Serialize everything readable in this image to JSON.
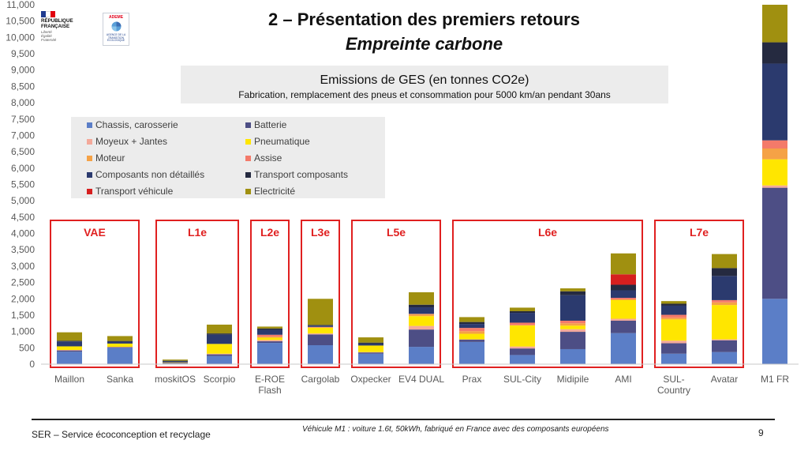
{
  "slide": {
    "title": "2 – Présentation des premiers retours",
    "subtitle": "Empreinte carbone"
  },
  "logos": {
    "republique": [
      "RÉPUBLIQUE",
      "FRANÇAISE"
    ],
    "republique_motto": [
      "Liberté",
      "Égalité",
      "Fraternité"
    ],
    "ademe_name": "ADEME",
    "ademe_tagline": [
      "AGENCE DE LA",
      "TRANSITION",
      "ÉCOLOGIQUE"
    ]
  },
  "chart_data": {
    "type": "bar",
    "stacked": true,
    "title": "Emissions de GES (en tonnes CO2e)",
    "subtitle": "Fabrication, remplacement des pneus et consommation pour 5000 km/an pendant 30ans",
    "ylim": [
      0,
      11000
    ],
    "yticks": [
      "0",
      "500",
      "1,000",
      "1,500",
      "2,000",
      "2,500",
      "3,000",
      "3,500",
      "4,000",
      "4,500",
      "5,000",
      "5,500",
      "6,000",
      "6,500",
      "7,000",
      "7,500",
      "8,000",
      "8,500",
      "9,000",
      "9,500",
      "10,000",
      "10,500",
      "11,000"
    ],
    "grid": false,
    "legend_position": "top-left",
    "categories": [
      "Maillon",
      "Sanka",
      "moskitOS",
      "Scorpio",
      "E-ROE Flash",
      "Cargolab",
      "Oxpecker",
      "EV4 DUAL",
      "Prax",
      "SUL-City",
      "Midipile",
      "AMI",
      "SUL-Country",
      "Avatar",
      "M1 FR"
    ],
    "category_labels": [
      [
        "Maillon"
      ],
      [
        "Sanka"
      ],
      [
        "moskitOS"
      ],
      [
        "Scorpio"
      ],
      [
        "E-ROE",
        "Flash"
      ],
      [
        "Cargolab"
      ],
      [
        "Oxpecker"
      ],
      [
        "EV4 DUAL"
      ],
      [
        "Prax"
      ],
      [
        "SUL-City"
      ],
      [
        "Midipile"
      ],
      [
        "AMI"
      ],
      [
        "SUL-",
        "Country"
      ],
      [
        "Avatar"
      ],
      [
        "M1 FR"
      ]
    ],
    "series": [
      {
        "name": "Chassis, carosserie",
        "color": "#5b7ec7",
        "values": [
          380,
          500,
          20,
          250,
          650,
          580,
          320,
          530,
          680,
          280,
          460,
          950,
          320,
          370,
          2000
        ]
      },
      {
        "name": "Batterie",
        "color": "#4d4e85",
        "values": [
          40,
          20,
          20,
          50,
          50,
          330,
          40,
          530,
          70,
          200,
          530,
          380,
          320,
          360,
          3400
        ]
      },
      {
        "name": "Moyeux + Jantes",
        "color": "#f4a99a",
        "values": [
          15,
          10,
          5,
          20,
          40,
          30,
          10,
          110,
          10,
          60,
          80,
          60,
          80,
          30,
          70
        ]
      },
      {
        "name": "Pneumatique",
        "color": "#ffe600",
        "values": [
          110,
          100,
          10,
          300,
          70,
          180,
          200,
          300,
          170,
          650,
          110,
          580,
          650,
          1050,
          800
        ]
      },
      {
        "name": "Moteur",
        "color": "#f5a246",
        "values": [
          0,
          0,
          0,
          0,
          30,
          0,
          0,
          60,
          80,
          0,
          70,
          0,
          50,
          80,
          330
        ]
      },
      {
        "name": "Assise",
        "color": "#f47a6a",
        "values": [
          0,
          0,
          0,
          0,
          60,
          20,
          0,
          10,
          100,
          80,
          80,
          60,
          90,
          70,
          250
        ]
      },
      {
        "name": "Composants non détaillés",
        "color": "#2b3a6e",
        "values": [
          150,
          60,
          40,
          280,
          150,
          40,
          60,
          200,
          120,
          300,
          780,
          230,
          280,
          740,
          2350
        ]
      },
      {
        "name": "Transport composants",
        "color": "#252a40",
        "values": [
          20,
          20,
          10,
          40,
          40,
          20,
          30,
          80,
          60,
          50,
          120,
          170,
          60,
          240,
          650
        ]
      },
      {
        "name": "Transport véhicule",
        "color": "#d61f1f",
        "values": [
          0,
          0,
          0,
          0,
          0,
          0,
          0,
          0,
          0,
          0,
          0,
          320,
          0,
          0,
          0
        ]
      },
      {
        "name": "Electricité",
        "color": "#a09010",
        "values": [
          260,
          150,
          35,
          270,
          60,
          800,
          160,
          380,
          150,
          110,
          90,
          640,
          80,
          430,
          1150
        ]
      }
    ],
    "groups": [
      {
        "label": "VAE",
        "categories": [
          "Maillon",
          "Sanka"
        ]
      },
      {
        "label": "L1e",
        "categories": [
          "moskitOS",
          "Scorpio"
        ]
      },
      {
        "label": "L2e",
        "categories": [
          "E-ROE Flash"
        ]
      },
      {
        "label": "L3e",
        "categories": [
          "Cargolab"
        ]
      },
      {
        "label": "L5e",
        "categories": [
          "Oxpecker",
          "EV4 DUAL"
        ]
      },
      {
        "label": "L6e",
        "categories": [
          "Prax",
          "SUL-City",
          "Midipile",
          "AMI"
        ]
      },
      {
        "label": "L7e",
        "categories": [
          "SUL-Country",
          "Avatar"
        ]
      }
    ]
  },
  "footer": {
    "left": "SER – Service écoconception et recyclage",
    "note": "Véhicule M1 : voiture 1.6t, 50kWh, fabriqué en France avec des composants européens",
    "page": "9"
  },
  "colors": {
    "group_box": "#e02020",
    "title_box": "#ececec",
    "legend_box": "#ececec"
  }
}
